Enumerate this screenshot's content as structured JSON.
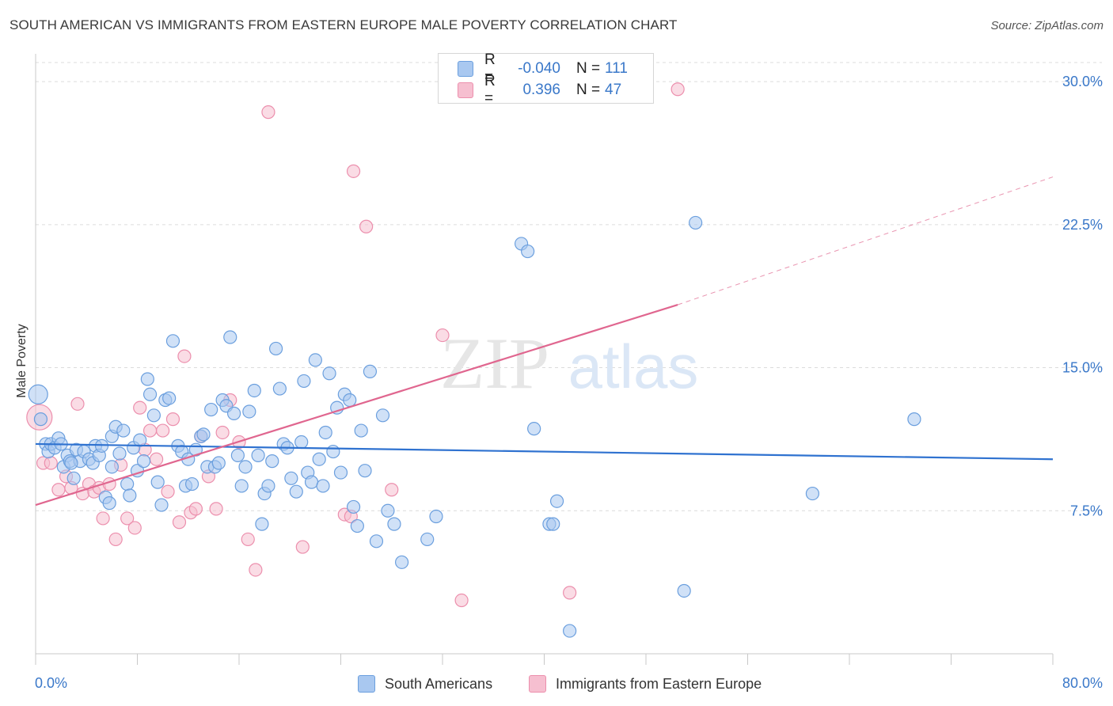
{
  "title": "SOUTH AMERICAN VS IMMIGRANTS FROM EASTERN EUROPE MALE POVERTY CORRELATION CHART",
  "source": "Source: ZipAtlas.com",
  "watermark": {
    "zip": "ZIP",
    "atlas": "atlas"
  },
  "legend_top": [
    {
      "r_label": "R =",
      "r_value": "-0.040",
      "n_label": "N =",
      "n_value": "111"
    },
    {
      "r_label": "R =",
      "r_value": "0.396",
      "n_label": "N =",
      "n_value": "47"
    }
  ],
  "legend_bottom": [
    "South Americans",
    "Immigrants from Eastern Europe"
  ],
  "colors": {
    "blue_fill": "#a9c8f0",
    "blue_stroke": "#6b9fde",
    "blue_line": "#2f72d0",
    "pink_fill": "#f6bfd0",
    "pink_stroke": "#ec8fad",
    "pink_line": "#e0668f",
    "axis_text": "#3a78c9",
    "grid": "#dcdcdc"
  },
  "chart_data": {
    "type": "scatter",
    "xlabel": "",
    "ylabel": "Male Poverty",
    "xlim": [
      0,
      80
    ],
    "ylim": [
      0,
      31
    ],
    "x_tick_labels": [
      "0.0%",
      "80.0%"
    ],
    "y_ticks": [
      7.5,
      15.0,
      22.5,
      30.0
    ],
    "y_tick_labels": [
      "7.5%",
      "15.0%",
      "22.5%",
      "30.0%"
    ],
    "grid": "horizontal dashed",
    "legend_placement": "top-center",
    "series": [
      {
        "name": "South Americans",
        "color": "#a9c8f0",
        "trend": {
          "x": [
            0,
            80
          ],
          "y": [
            11.0,
            10.2
          ],
          "style": "solid"
        },
        "points": [
          [
            0.2,
            13.6
          ],
          [
            0.4,
            12.3
          ],
          [
            0.8,
            11.0
          ],
          [
            1.0,
            10.6
          ],
          [
            1.2,
            11.0
          ],
          [
            1.5,
            10.8
          ],
          [
            1.8,
            11.3
          ],
          [
            2.0,
            11.0
          ],
          [
            2.2,
            9.8
          ],
          [
            2.5,
            10.4
          ],
          [
            2.7,
            10.1
          ],
          [
            3.0,
            9.2
          ],
          [
            3.2,
            10.7
          ],
          [
            3.5,
            10.1
          ],
          [
            3.8,
            10.6
          ],
          [
            4.2,
            10.2
          ],
          [
            4.5,
            10.0
          ],
          [
            4.7,
            10.9
          ],
          [
            5.0,
            10.4
          ],
          [
            5.2,
            10.9
          ],
          [
            5.5,
            8.2
          ],
          [
            5.8,
            7.9
          ],
          [
            6.0,
            11.4
          ],
          [
            6.3,
            11.9
          ],
          [
            6.6,
            10.5
          ],
          [
            6.9,
            11.7
          ],
          [
            7.2,
            8.9
          ],
          [
            7.4,
            8.3
          ],
          [
            7.7,
            10.8
          ],
          [
            8.0,
            9.6
          ],
          [
            8.2,
            11.2
          ],
          [
            8.5,
            10.1
          ],
          [
            8.8,
            14.4
          ],
          [
            9.0,
            13.6
          ],
          [
            9.3,
            12.5
          ],
          [
            9.6,
            9.0
          ],
          [
            9.9,
            7.8
          ],
          [
            10.2,
            13.3
          ],
          [
            10.5,
            13.4
          ],
          [
            10.8,
            16.4
          ],
          [
            11.2,
            10.9
          ],
          [
            11.5,
            10.6
          ],
          [
            11.8,
            8.8
          ],
          [
            12.0,
            10.2
          ],
          [
            12.3,
            8.9
          ],
          [
            12.6,
            10.7
          ],
          [
            13.0,
            11.4
          ],
          [
            13.2,
            11.5
          ],
          [
            13.5,
            9.8
          ],
          [
            13.8,
            12.8
          ],
          [
            14.1,
            9.8
          ],
          [
            14.4,
            10.0
          ],
          [
            14.7,
            13.3
          ],
          [
            15.0,
            13.0
          ],
          [
            15.3,
            16.6
          ],
          [
            15.6,
            12.6
          ],
          [
            15.9,
            10.4
          ],
          [
            16.2,
            8.8
          ],
          [
            16.5,
            9.8
          ],
          [
            16.8,
            12.7
          ],
          [
            17.2,
            13.8
          ],
          [
            17.5,
            10.4
          ],
          [
            17.8,
            6.8
          ],
          [
            18.0,
            8.4
          ],
          [
            18.3,
            8.8
          ],
          [
            18.6,
            10.1
          ],
          [
            18.9,
            16.0
          ],
          [
            19.2,
            13.9
          ],
          [
            19.5,
            11.0
          ],
          [
            19.8,
            10.8
          ],
          [
            20.1,
            9.2
          ],
          [
            20.5,
            8.5
          ],
          [
            20.9,
            11.1
          ],
          [
            21.1,
            14.3
          ],
          [
            21.4,
            9.5
          ],
          [
            21.7,
            9.0
          ],
          [
            22.0,
            15.4
          ],
          [
            22.3,
            10.2
          ],
          [
            22.6,
            8.8
          ],
          [
            22.8,
            11.6
          ],
          [
            23.1,
            14.7
          ],
          [
            23.4,
            10.6
          ],
          [
            23.7,
            12.9
          ],
          [
            24.0,
            9.5
          ],
          [
            24.3,
            13.6
          ],
          [
            24.7,
            13.3
          ],
          [
            25.0,
            7.7
          ],
          [
            25.3,
            6.7
          ],
          [
            25.6,
            11.7
          ],
          [
            25.9,
            9.6
          ],
          [
            26.3,
            14.8
          ],
          [
            26.8,
            5.9
          ],
          [
            27.3,
            12.5
          ],
          [
            27.7,
            7.5
          ],
          [
            28.2,
            6.8
          ],
          [
            28.8,
            4.8
          ],
          [
            30.8,
            6.0
          ],
          [
            31.5,
            7.2
          ],
          [
            38.2,
            21.5
          ],
          [
            38.7,
            21.1
          ],
          [
            39.2,
            11.8
          ],
          [
            40.4,
            6.8
          ],
          [
            40.7,
            6.8
          ],
          [
            41.0,
            8.0
          ],
          [
            42.0,
            1.2
          ],
          [
            51.0,
            3.3
          ],
          [
            51.9,
            22.6
          ],
          [
            61.1,
            8.4
          ],
          [
            69.1,
            12.3
          ],
          [
            2.8,
            10.0
          ],
          [
            6.0,
            9.8
          ]
        ]
      },
      {
        "name": "Immigrants from Eastern Europe",
        "color": "#f6bfd0",
        "trend": {
          "x": [
            0,
            50.5
          ],
          "y": [
            7.8,
            18.3
          ],
          "style": "solid",
          "dashed_extension": {
            "x": [
              50.5,
              80
            ],
            "y": [
              18.3,
              25.0
            ]
          }
        },
        "points": [
          [
            0.3,
            12.4
          ],
          [
            0.6,
            10.0
          ],
          [
            1.2,
            10.0
          ],
          [
            1.8,
            8.6
          ],
          [
            2.4,
            9.3
          ],
          [
            2.8,
            8.7
          ],
          [
            3.3,
            13.1
          ],
          [
            3.7,
            8.4
          ],
          [
            4.2,
            8.9
          ],
          [
            4.6,
            8.5
          ],
          [
            5.0,
            8.7
          ],
          [
            5.3,
            7.1
          ],
          [
            5.8,
            8.9
          ],
          [
            6.3,
            6.0
          ],
          [
            6.7,
            9.9
          ],
          [
            7.2,
            7.1
          ],
          [
            7.8,
            6.6
          ],
          [
            8.2,
            12.9
          ],
          [
            8.6,
            10.7
          ],
          [
            9.0,
            11.7
          ],
          [
            9.5,
            10.2
          ],
          [
            10.0,
            11.7
          ],
          [
            10.4,
            8.5
          ],
          [
            10.8,
            12.3
          ],
          [
            11.3,
            6.9
          ],
          [
            11.7,
            15.6
          ],
          [
            12.2,
            7.4
          ],
          [
            12.6,
            7.6
          ],
          [
            13.0,
            11.4
          ],
          [
            13.6,
            9.3
          ],
          [
            14.2,
            7.6
          ],
          [
            14.7,
            11.6
          ],
          [
            15.3,
            13.3
          ],
          [
            16.0,
            11.1
          ],
          [
            16.7,
            6.0
          ],
          [
            17.3,
            4.4
          ],
          [
            18.3,
            28.4
          ],
          [
            21.0,
            5.6
          ],
          [
            24.3,
            7.3
          ],
          [
            24.8,
            7.2
          ],
          [
            25.0,
            25.3
          ],
          [
            26.0,
            22.4
          ],
          [
            28.0,
            8.6
          ],
          [
            32.0,
            16.7
          ],
          [
            33.5,
            2.8
          ],
          [
            42.0,
            3.2
          ],
          [
            50.5,
            29.6
          ]
        ]
      }
    ]
  }
}
